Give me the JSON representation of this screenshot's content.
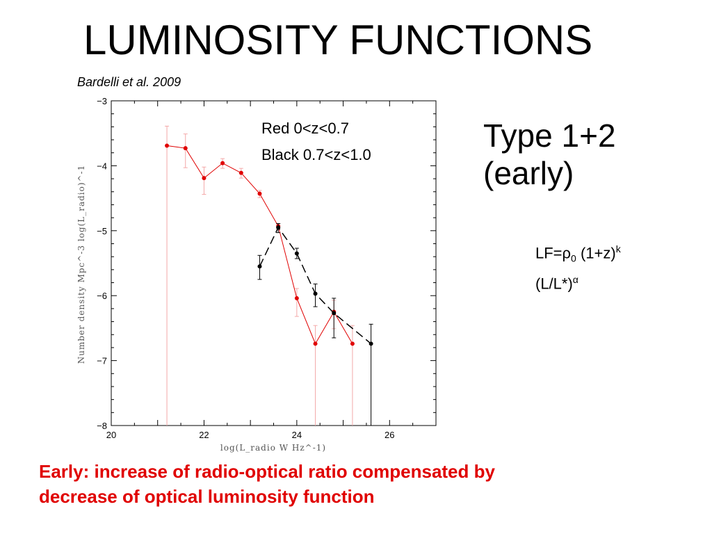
{
  "slide": {
    "title": "LUMINOSITY FUNCTIONS",
    "citation": "Bardelli et al. 2009",
    "type_line1": "Type 1+2",
    "type_line2": "(early)",
    "formula": {
      "lf_prefix": "LF=",
      "rho": "ρ",
      "rho_sub": "0",
      "factor": " (1+z)",
      "k_sup": "k",
      "ratio": "(L/L*)",
      "alpha_sup": "α"
    },
    "caption_line1": "Early: increase of radio-optical ratio compensated by",
    "caption_line2": "decrease of optical luminosity function"
  },
  "colors": {
    "red": "#e00000",
    "red_error": "#f4a8a8",
    "black": "#000000",
    "caption": "#e00000"
  },
  "chart_data": {
    "type": "line",
    "xlabel": "log(L_radio  W  Hz^-1)",
    "ylabel": "Number  density  Mpc^-3  log(L_radio)^-1",
    "xlim": [
      20,
      27
    ],
    "ylim": [
      -8,
      -3
    ],
    "xticks": [
      20,
      22,
      24,
      26
    ],
    "yticks": [
      -3,
      -4,
      -5,
      -6,
      -7,
      -8
    ],
    "legend": [
      "Red 0<z<0.7",
      "Black 0.7<z<1.0"
    ],
    "series": [
      {
        "name": "Red 0<z<0.7",
        "color": "#e00000",
        "style": "solid",
        "x": [
          21.2,
          21.6,
          22.0,
          22.4,
          22.8,
          23.2,
          23.6,
          24.0,
          24.4,
          24.8,
          25.2
        ],
        "y": [
          -3.69,
          -3.73,
          -4.19,
          -3.96,
          -4.11,
          -4.43,
          -4.93,
          -6.04,
          -6.74,
          -6.25,
          -6.74
        ],
        "err_lo": [
          4.31,
          0.3,
          0.25,
          0.08,
          0.08,
          0.06,
          0.05,
          0.28,
          1.26,
          0.26,
          1.26
        ],
        "err_hi": [
          0.3,
          0.22,
          0.17,
          0.07,
          0.07,
          0.05,
          0.04,
          0.15,
          0.28,
          0.18,
          0.28
        ]
      },
      {
        "name": "Black 0.7<z<1.0",
        "color": "#000000",
        "style": "dashed",
        "x": [
          23.2,
          23.6,
          24.0,
          24.4,
          24.8,
          25.6
        ],
        "y": [
          -5.55,
          -4.95,
          -5.35,
          -5.97,
          -6.27,
          -6.74
        ],
        "err_lo": [
          0.2,
          0.08,
          0.08,
          0.2,
          0.38,
          1.26
        ],
        "err_hi": [
          0.17,
          0.06,
          0.08,
          0.15,
          0.23,
          0.3
        ]
      }
    ]
  }
}
